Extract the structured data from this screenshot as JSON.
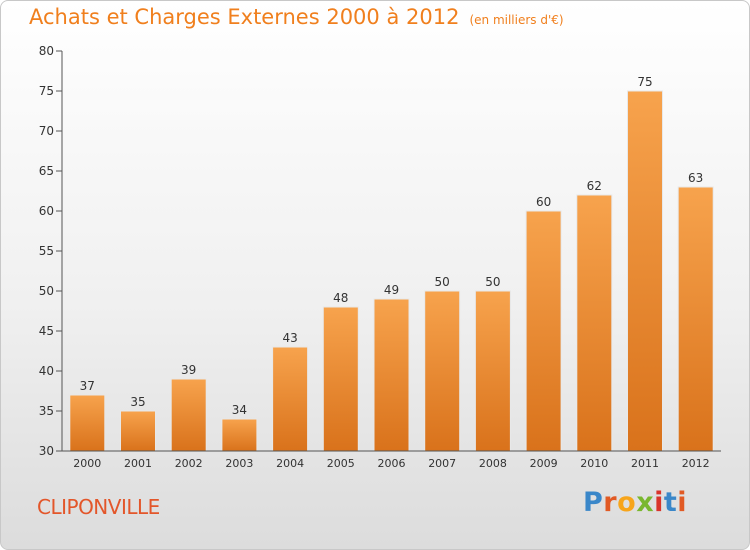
{
  "header": {
    "title": "Achats et Charges Externes 2000 à 2012",
    "subtitle": "(en milliers d'€)"
  },
  "footer": {
    "city": "CLIPONVILLE",
    "logo": {
      "text": "Proxiti",
      "letter_colors": [
        "#3a87c9",
        "#e15a24",
        "#f7a51b",
        "#79b72e",
        "#d9342b",
        "#3a87c9",
        "#e15a24"
      ]
    }
  },
  "colors": {
    "bar_light": "#f7a34d",
    "bar_dark": "#d9721b",
    "text": "#333333",
    "axis": "#555555"
  },
  "chart_data": {
    "type": "bar",
    "categories": [
      "2000",
      "2001",
      "2002",
      "2003",
      "2004",
      "2005",
      "2006",
      "2007",
      "2008",
      "2009",
      "2010",
      "2011",
      "2012"
    ],
    "values": [
      37,
      35,
      39,
      34,
      43,
      48,
      49,
      50,
      50,
      60,
      62,
      75,
      63
    ],
    "data_labels": [
      "37",
      "35",
      "39",
      "34",
      "43",
      "48",
      "49",
      "50",
      "50",
      "60",
      "62",
      "75",
      "63"
    ],
    "ylim": [
      30,
      80
    ],
    "yticks": [
      30,
      35,
      40,
      45,
      50,
      55,
      60,
      65,
      70,
      75,
      80
    ],
    "ytick_labels": [
      "30",
      "35",
      "40",
      "45",
      "50",
      "55",
      "60",
      "65",
      "70",
      "75",
      "80"
    ],
    "grid": false,
    "title": "Achats et Charges Externes 2000 à 2012",
    "xlabel": "",
    "ylabel": ""
  }
}
